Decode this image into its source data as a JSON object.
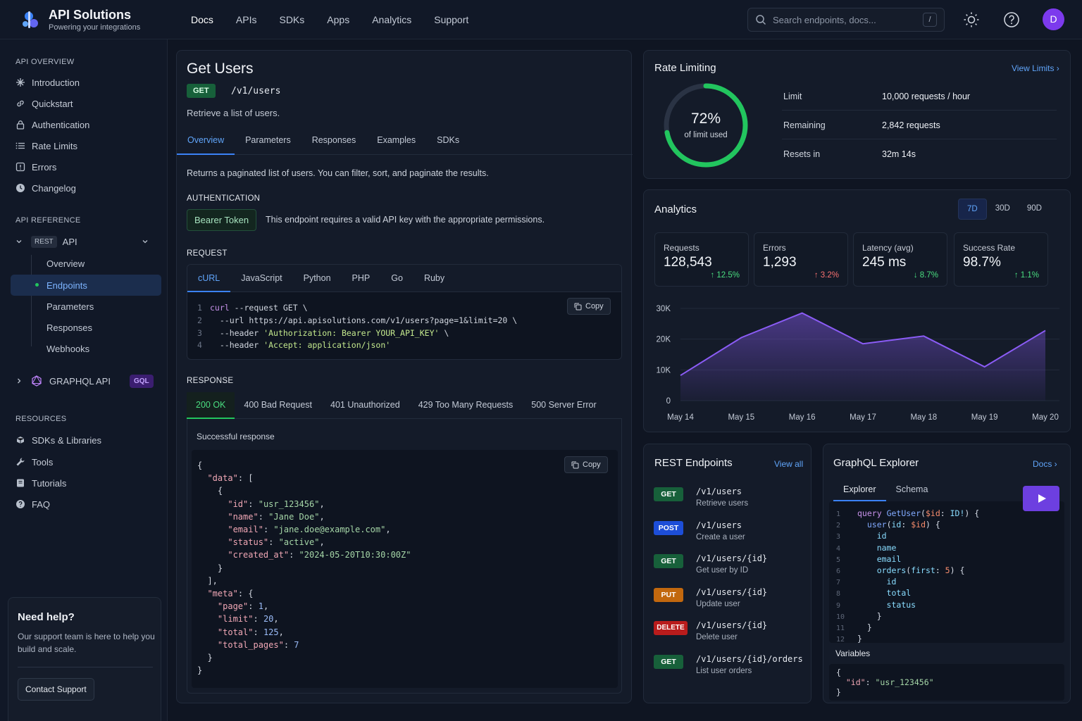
{
  "brand": {
    "name": "API Solutions",
    "tagline": "Powering your integrations"
  },
  "nav": {
    "items": [
      "Docs",
      "APIs",
      "SDKs",
      "Apps",
      "Analytics",
      "Support"
    ],
    "active": "Docs"
  },
  "search": {
    "placeholder": "Search endpoints, docs...",
    "shortcut": "/"
  },
  "user": {
    "initial": "D"
  },
  "sidebar": {
    "overview_heading": "API OVERVIEW",
    "overview_items": [
      "Introduction",
      "Quickstart",
      "Authentication",
      "Rate Limits",
      "Errors",
      "Changelog"
    ],
    "reference_heading": "API REFERENCE",
    "rest_tag": "REST",
    "rest_label": "API",
    "rest_children": [
      "Overview",
      "Endpoints",
      "Parameters",
      "Responses",
      "Webhooks"
    ],
    "rest_active": "Endpoints",
    "graphql_label": "GRAPHQL API",
    "graphql_badge": "GQL",
    "resources_heading": "RESOURCES",
    "resources_items": [
      "SDKs & Libraries",
      "Tools",
      "Tutorials",
      "FAQ"
    ],
    "help": {
      "title": "Need help?",
      "text": "Our support team is here to help you build and scale.",
      "button": "Contact Support"
    }
  },
  "endpoint": {
    "title": "Get Users",
    "method": "GET",
    "path": "/v1/users",
    "summary": "Retrieve a list of users.",
    "tabs": [
      "Overview",
      "Parameters",
      "Responses",
      "Examples",
      "SDKs"
    ],
    "description": "Returns a paginated list of users. You can filter, sort, and paginate the results.",
    "auth_heading": "AUTHENTICATION",
    "auth_badge": "Bearer Token",
    "auth_note": "This endpoint requires a valid API key with the appropriate permissions.",
    "request_heading": "REQUEST",
    "languages": [
      "cURL",
      "JavaScript",
      "Python",
      "PHP",
      "Go",
      "Ruby"
    ],
    "copy_label": "Copy",
    "request_code": [
      "curl --request GET \\",
      "  --url https://api.apisolutions.com/v1/users?page=1&limit=20 \\",
      "  --header 'Authorization: Bearer YOUR_API_KEY' \\",
      "  --header 'Accept: application/json'"
    ],
    "response_heading": "RESPONSE",
    "response_tabs": [
      "200 OK",
      "400 Bad Request",
      "401 Unauthorized",
      "429 Too Many Requests",
      "500 Server Error"
    ],
    "response_note": "Successful response",
    "response_json": {
      "id": "usr_123456",
      "name": "Jane Doe",
      "email": "jane.doe@example.com",
      "status": "active",
      "created_at": "2024-05-20T10:30:00Z",
      "page": "1",
      "limit": "20",
      "total": "125",
      "total_pages": "7"
    }
  },
  "rate_limit": {
    "title": "Rate Limiting",
    "link": "View Limits",
    "percent": 72,
    "percent_label": "72%",
    "percent_sub": "of limit used",
    "rows": [
      {
        "label": "Limit",
        "value": "10,000 requests / hour"
      },
      {
        "label": "Remaining",
        "value": "2,842 requests"
      },
      {
        "label": "Resets in",
        "value": "32m 14s"
      }
    ],
    "ring_color": "#22c55e"
  },
  "analytics": {
    "title": "Analytics",
    "periods": [
      "7D",
      "30D",
      "90D"
    ],
    "active_period": "7D",
    "stats": [
      {
        "label": "Requests",
        "value": "128,543",
        "delta": "12.5%",
        "dir": "up",
        "good": true
      },
      {
        "label": "Errors",
        "value": "1,293",
        "delta": "3.2%",
        "dir": "up",
        "good": false
      },
      {
        "label": "Latency (avg)",
        "value": "245 ms",
        "delta": "8.7%",
        "dir": "down",
        "good": true
      },
      {
        "label": "Success Rate",
        "value": "98.7%",
        "delta": "1.1%",
        "dir": "up",
        "good": true
      }
    ]
  },
  "chart_data": {
    "type": "area",
    "x": [
      "May 14",
      "May 15",
      "May 16",
      "May 17",
      "May 18",
      "May 19",
      "May 20"
    ],
    "values": [
      8200,
      20500,
      28500,
      18500,
      21000,
      11000,
      22800
    ],
    "y_ticks": [
      "0",
      "10K",
      "20K",
      "30K"
    ],
    "ylim": [
      0,
      30000
    ],
    "grid": true,
    "color": "#8b5cf6"
  },
  "rest_endpoints": {
    "title": "REST Endpoints",
    "link": "View all",
    "items": [
      {
        "method": "GET",
        "path": "/v1/users",
        "desc": "Retrieve users"
      },
      {
        "method": "POST",
        "path": "/v1/users",
        "desc": "Create a user"
      },
      {
        "method": "GET",
        "path": "/v1/users/{id}",
        "desc": "Get user by ID"
      },
      {
        "method": "PUT",
        "path": "/v1/users/{id}",
        "desc": "Update user"
      },
      {
        "method": "DELETE",
        "path": "/v1/users/{id}",
        "desc": "Delete user"
      },
      {
        "method": "GET",
        "path": "/v1/users/{id}/orders",
        "desc": "List user orders"
      }
    ],
    "method_colors": {
      "GET": "#17603a",
      "POST": "#1d4ed8",
      "PUT": "#c2680e",
      "DELETE": "#b91c1c"
    }
  },
  "graphql": {
    "title": "GraphQL Explorer",
    "link": "Docs",
    "tabs": [
      "Explorer",
      "Schema"
    ],
    "variables_label": "Variables",
    "variables_key": "id",
    "variables_value": "usr_123456"
  }
}
